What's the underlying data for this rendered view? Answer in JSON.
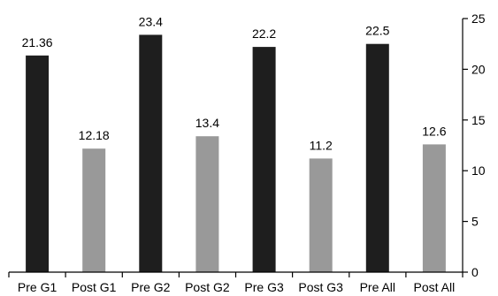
{
  "chart_data": {
    "type": "bar",
    "title": "",
    "xlabel": "",
    "ylabel": "",
    "categories": [
      "Pre G1",
      "Post G1",
      "Pre G2",
      "Post G2",
      "Pre G3",
      "Post G3",
      "Pre All",
      "Post All"
    ],
    "values": [
      21.36,
      12.18,
      23.4,
      13.4,
      22.2,
      11.2,
      22.5,
      12.6
    ],
    "data_labels": [
      "21.36",
      "12.18",
      "23.4",
      "13.4",
      "22.2",
      "11.2",
      "22.5",
      "12.6"
    ],
    "ylim": [
      0,
      25
    ],
    "yticks": [
      0,
      5,
      10,
      15,
      20,
      25
    ],
    "ytick_labels": [
      "0",
      "5",
      "10",
      "15",
      "20",
      "25"
    ],
    "y_axis_side": "right",
    "grid": false,
    "legend": "none",
    "colors": {
      "pre": "#1e1e1e",
      "post": "#999999"
    }
  }
}
